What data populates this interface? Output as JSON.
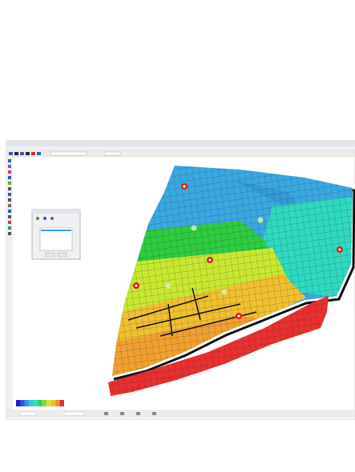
{
  "colorbar": {
    "colors": [
      "#1a1ad0",
      "#1e5ae8",
      "#2a9ae8",
      "#30c8e0",
      "#30e0b0",
      "#30d060",
      "#80e030",
      "#d0e830",
      "#f0c030",
      "#f09030",
      "#e83030"
    ]
  }
}
